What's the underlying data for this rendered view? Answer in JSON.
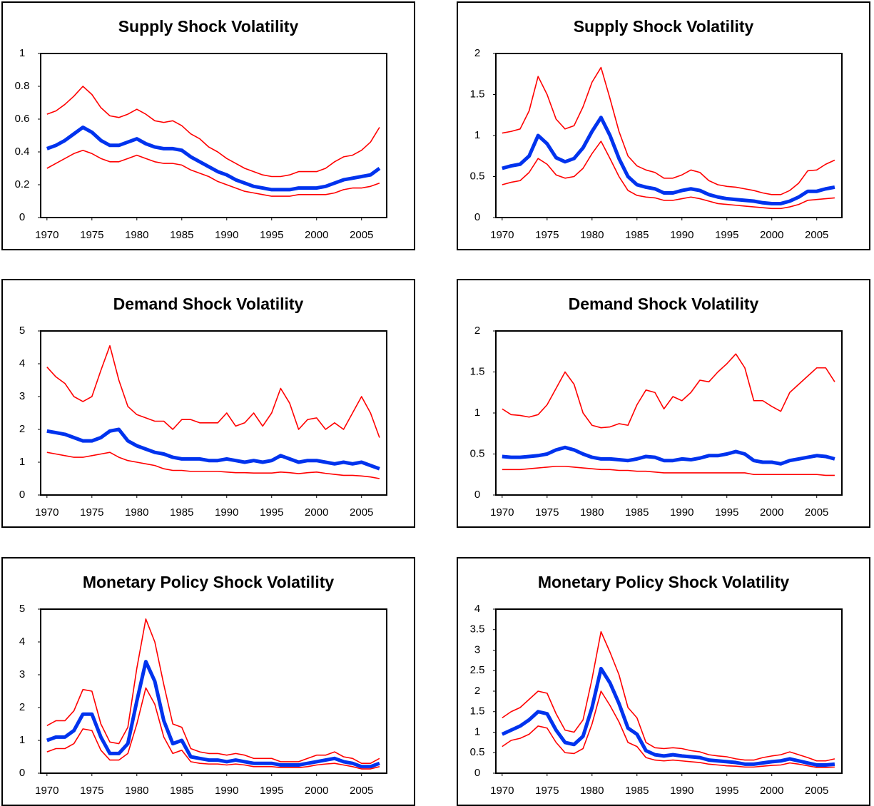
{
  "chart_data": [
    {
      "type": "line",
      "title": "Supply Shock Volatility",
      "x": [
        1970,
        1971,
        1972,
        1973,
        1974,
        1975,
        1976,
        1977,
        1978,
        1979,
        1980,
        1981,
        1982,
        1983,
        1984,
        1985,
        1986,
        1987,
        1988,
        1989,
        1990,
        1991,
        1992,
        1993,
        1994,
        1995,
        1996,
        1997,
        1998,
        1999,
        2000,
        2001,
        2002,
        2003,
        2004,
        2005,
        2006,
        2007
      ],
      "xlim": [
        1969.3,
        2007.8
      ],
      "xticks": [
        1970,
        1975,
        1980,
        1985,
        1990,
        1995,
        2000,
        2005
      ],
      "ylim": [
        0,
        1
      ],
      "yticks": [
        0,
        0.2,
        0.4,
        0.6,
        0.8,
        1
      ],
      "series": [
        {
          "color": "#ff0000",
          "values": [
            0.63,
            0.65,
            0.69,
            0.74,
            0.8,
            0.75,
            0.67,
            0.62,
            0.61,
            0.63,
            0.66,
            0.63,
            0.59,
            0.58,
            0.59,
            0.56,
            0.51,
            0.48,
            0.43,
            0.4,
            0.36,
            0.33,
            0.3,
            0.28,
            0.26,
            0.25,
            0.25,
            0.26,
            0.28,
            0.28,
            0.28,
            0.3,
            0.34,
            0.37,
            0.38,
            0.41,
            0.46,
            0.55
          ]
        },
        {
          "color": "#0033ee",
          "values": [
            0.42,
            0.44,
            0.47,
            0.51,
            0.55,
            0.52,
            0.47,
            0.44,
            0.44,
            0.46,
            0.48,
            0.45,
            0.43,
            0.42,
            0.42,
            0.41,
            0.37,
            0.34,
            0.31,
            0.28,
            0.26,
            0.23,
            0.21,
            0.19,
            0.18,
            0.17,
            0.17,
            0.17,
            0.18,
            0.18,
            0.18,
            0.19,
            0.21,
            0.23,
            0.24,
            0.25,
            0.26,
            0.3
          ]
        },
        {
          "color": "#ff0000",
          "values": [
            0.3,
            0.33,
            0.36,
            0.39,
            0.41,
            0.39,
            0.36,
            0.34,
            0.34,
            0.36,
            0.38,
            0.36,
            0.34,
            0.33,
            0.33,
            0.32,
            0.29,
            0.27,
            0.25,
            0.22,
            0.2,
            0.18,
            0.16,
            0.15,
            0.14,
            0.13,
            0.13,
            0.13,
            0.14,
            0.14,
            0.14,
            0.14,
            0.15,
            0.17,
            0.18,
            0.18,
            0.19,
            0.21
          ]
        }
      ]
    },
    {
      "type": "line",
      "title": "Supply Shock Volatility",
      "x": [
        1970,
        1971,
        1972,
        1973,
        1974,
        1975,
        1976,
        1977,
        1978,
        1979,
        1980,
        1981,
        1982,
        1983,
        1984,
        1985,
        1986,
        1987,
        1988,
        1989,
        1990,
        1991,
        1992,
        1993,
        1994,
        1995,
        1996,
        1997,
        1998,
        1999,
        2000,
        2001,
        2002,
        2003,
        2004,
        2005,
        2006,
        2007
      ],
      "xlim": [
        1969.3,
        2007.8
      ],
      "xticks": [
        1970,
        1975,
        1980,
        1985,
        1990,
        1995,
        2000,
        2005
      ],
      "ylim": [
        0,
        2
      ],
      "yticks": [
        0,
        0.5,
        1,
        1.5,
        2
      ],
      "series": [
        {
          "color": "#ff0000",
          "values": [
            1.03,
            1.05,
            1.08,
            1.3,
            1.72,
            1.5,
            1.2,
            1.08,
            1.12,
            1.35,
            1.65,
            1.83,
            1.45,
            1.05,
            0.75,
            0.63,
            0.58,
            0.55,
            0.48,
            0.48,
            0.52,
            0.58,
            0.55,
            0.45,
            0.4,
            0.38,
            0.37,
            0.35,
            0.33,
            0.3,
            0.28,
            0.28,
            0.33,
            0.42,
            0.57,
            0.58,
            0.65,
            0.7
          ]
        },
        {
          "color": "#0033ee",
          "values": [
            0.6,
            0.63,
            0.65,
            0.75,
            1.0,
            0.9,
            0.73,
            0.68,
            0.72,
            0.85,
            1.05,
            1.22,
            1.0,
            0.72,
            0.5,
            0.4,
            0.37,
            0.35,
            0.3,
            0.3,
            0.33,
            0.35,
            0.33,
            0.28,
            0.25,
            0.23,
            0.22,
            0.21,
            0.2,
            0.18,
            0.17,
            0.17,
            0.2,
            0.25,
            0.32,
            0.32,
            0.35,
            0.37
          ]
        },
        {
          "color": "#ff0000",
          "values": [
            0.4,
            0.43,
            0.45,
            0.55,
            0.72,
            0.65,
            0.52,
            0.48,
            0.5,
            0.6,
            0.78,
            0.93,
            0.72,
            0.5,
            0.33,
            0.27,
            0.25,
            0.24,
            0.21,
            0.21,
            0.23,
            0.25,
            0.23,
            0.2,
            0.17,
            0.16,
            0.15,
            0.14,
            0.13,
            0.12,
            0.11,
            0.11,
            0.13,
            0.16,
            0.21,
            0.22,
            0.23,
            0.24
          ]
        }
      ]
    },
    {
      "type": "line",
      "title": "Demand Shock Volatility",
      "x": [
        1970,
        1971,
        1972,
        1973,
        1974,
        1975,
        1976,
        1977,
        1978,
        1979,
        1980,
        1981,
        1982,
        1983,
        1984,
        1985,
        1986,
        1987,
        1988,
        1989,
        1990,
        1991,
        1992,
        1993,
        1994,
        1995,
        1996,
        1997,
        1998,
        1999,
        2000,
        2001,
        2002,
        2003,
        2004,
        2005,
        2006,
        2007
      ],
      "xlim": [
        1969.3,
        2007.8
      ],
      "xticks": [
        1970,
        1975,
        1980,
        1985,
        1990,
        1995,
        2000,
        2005
      ],
      "ylim": [
        0,
        5
      ],
      "yticks": [
        0,
        1,
        2,
        3,
        4,
        5
      ],
      "series": [
        {
          "color": "#ff0000",
          "values": [
            3.9,
            3.6,
            3.4,
            3.0,
            2.85,
            3.0,
            3.8,
            4.55,
            3.5,
            2.7,
            2.45,
            2.35,
            2.25,
            2.25,
            2.0,
            2.3,
            2.3,
            2.2,
            2.2,
            2.2,
            2.5,
            2.1,
            2.2,
            2.5,
            2.1,
            2.5,
            3.25,
            2.8,
            2.0,
            2.3,
            2.35,
            2.0,
            2.2,
            2.0,
            2.5,
            3.0,
            2.5,
            1.75
          ]
        },
        {
          "color": "#0033ee",
          "values": [
            1.95,
            1.9,
            1.85,
            1.75,
            1.65,
            1.65,
            1.75,
            1.95,
            2.0,
            1.65,
            1.5,
            1.4,
            1.3,
            1.25,
            1.15,
            1.1,
            1.1,
            1.1,
            1.05,
            1.05,
            1.1,
            1.05,
            1.0,
            1.05,
            1.0,
            1.05,
            1.2,
            1.1,
            1.0,
            1.05,
            1.05,
            1.0,
            0.95,
            1.0,
            0.95,
            1.0,
            0.9,
            0.8
          ]
        },
        {
          "color": "#ff0000",
          "values": [
            1.3,
            1.25,
            1.2,
            1.15,
            1.15,
            1.2,
            1.25,
            1.3,
            1.15,
            1.05,
            1.0,
            0.95,
            0.9,
            0.8,
            0.75,
            0.75,
            0.72,
            0.72,
            0.72,
            0.72,
            0.7,
            0.68,
            0.68,
            0.67,
            0.67,
            0.67,
            0.7,
            0.68,
            0.65,
            0.68,
            0.7,
            0.66,
            0.63,
            0.6,
            0.6,
            0.58,
            0.55,
            0.5
          ]
        }
      ]
    },
    {
      "type": "line",
      "title": "Demand Shock Volatility",
      "x": [
        1970,
        1971,
        1972,
        1973,
        1974,
        1975,
        1976,
        1977,
        1978,
        1979,
        1980,
        1981,
        1982,
        1983,
        1984,
        1985,
        1986,
        1987,
        1988,
        1989,
        1990,
        1991,
        1992,
        1993,
        1994,
        1995,
        1996,
        1997,
        1998,
        1999,
        2000,
        2001,
        2002,
        2003,
        2004,
        2005,
        2006,
        2007
      ],
      "xlim": [
        1969.3,
        2007.8
      ],
      "xticks": [
        1970,
        1975,
        1980,
        1985,
        1990,
        1995,
        2000,
        2005
      ],
      "ylim": [
        0,
        2
      ],
      "yticks": [
        0,
        0.5,
        1,
        1.5,
        2
      ],
      "series": [
        {
          "color": "#ff0000",
          "values": [
            1.05,
            0.98,
            0.97,
            0.95,
            0.98,
            1.1,
            1.3,
            1.5,
            1.35,
            1.0,
            0.85,
            0.82,
            0.83,
            0.87,
            0.85,
            1.1,
            1.28,
            1.25,
            1.05,
            1.2,
            1.15,
            1.25,
            1.4,
            1.38,
            1.5,
            1.6,
            1.72,
            1.55,
            1.15,
            1.15,
            1.08,
            1.02,
            1.25,
            1.35,
            1.45,
            1.55,
            1.55,
            1.38
          ]
        },
        {
          "color": "#0033ee",
          "values": [
            0.47,
            0.46,
            0.46,
            0.47,
            0.48,
            0.5,
            0.55,
            0.58,
            0.55,
            0.5,
            0.46,
            0.44,
            0.44,
            0.43,
            0.42,
            0.44,
            0.47,
            0.46,
            0.42,
            0.42,
            0.44,
            0.43,
            0.45,
            0.48,
            0.48,
            0.5,
            0.53,
            0.5,
            0.42,
            0.4,
            0.4,
            0.38,
            0.42,
            0.44,
            0.46,
            0.48,
            0.47,
            0.44
          ]
        },
        {
          "color": "#ff0000",
          "values": [
            0.31,
            0.31,
            0.31,
            0.32,
            0.33,
            0.34,
            0.35,
            0.35,
            0.34,
            0.33,
            0.32,
            0.31,
            0.31,
            0.3,
            0.3,
            0.29,
            0.29,
            0.28,
            0.27,
            0.27,
            0.27,
            0.27,
            0.27,
            0.27,
            0.27,
            0.27,
            0.27,
            0.27,
            0.25,
            0.25,
            0.25,
            0.25,
            0.25,
            0.25,
            0.25,
            0.25,
            0.24,
            0.24
          ]
        }
      ]
    },
    {
      "type": "line",
      "title": "Monetary Policy Shock Volatility",
      "x": [
        1970,
        1971,
        1972,
        1973,
        1974,
        1975,
        1976,
        1977,
        1978,
        1979,
        1980,
        1981,
        1982,
        1983,
        1984,
        1985,
        1986,
        1987,
        1988,
        1989,
        1990,
        1991,
        1992,
        1993,
        1994,
        1995,
        1996,
        1997,
        1998,
        1999,
        2000,
        2001,
        2002,
        2003,
        2004,
        2005,
        2006,
        2007
      ],
      "xlim": [
        1969.3,
        2007.8
      ],
      "xticks": [
        1970,
        1975,
        1980,
        1985,
        1990,
        1995,
        2000,
        2005
      ],
      "ylim": [
        0,
        5
      ],
      "yticks": [
        0,
        1,
        2,
        3,
        4,
        5
      ],
      "series": [
        {
          "color": "#ff0000",
          "values": [
            1.45,
            1.6,
            1.6,
            1.9,
            2.55,
            2.5,
            1.5,
            0.95,
            0.9,
            1.4,
            3.2,
            4.7,
            4.0,
            2.7,
            1.5,
            1.4,
            0.75,
            0.65,
            0.6,
            0.6,
            0.55,
            0.6,
            0.55,
            0.45,
            0.45,
            0.45,
            0.35,
            0.35,
            0.35,
            0.45,
            0.55,
            0.55,
            0.65,
            0.5,
            0.45,
            0.3,
            0.3,
            0.45
          ]
        },
        {
          "color": "#0033ee",
          "values": [
            1.0,
            1.1,
            1.1,
            1.3,
            1.8,
            1.8,
            1.1,
            0.6,
            0.6,
            0.9,
            2.2,
            3.4,
            2.8,
            1.6,
            0.9,
            1.0,
            0.5,
            0.45,
            0.4,
            0.4,
            0.35,
            0.4,
            0.35,
            0.3,
            0.3,
            0.3,
            0.25,
            0.25,
            0.25,
            0.3,
            0.35,
            0.4,
            0.45,
            0.35,
            0.3,
            0.2,
            0.2,
            0.3
          ]
        },
        {
          "color": "#ff0000",
          "values": [
            0.65,
            0.75,
            0.75,
            0.9,
            1.35,
            1.3,
            0.7,
            0.4,
            0.4,
            0.6,
            1.5,
            2.6,
            2.1,
            1.1,
            0.6,
            0.7,
            0.35,
            0.3,
            0.28,
            0.28,
            0.25,
            0.28,
            0.25,
            0.2,
            0.2,
            0.2,
            0.17,
            0.17,
            0.17,
            0.2,
            0.25,
            0.28,
            0.3,
            0.25,
            0.2,
            0.13,
            0.13,
            0.2
          ]
        }
      ]
    },
    {
      "type": "line",
      "title": "Monetary Policy Shock Volatility",
      "x": [
        1970,
        1971,
        1972,
        1973,
        1974,
        1975,
        1976,
        1977,
        1978,
        1979,
        1980,
        1981,
        1982,
        1983,
        1984,
        1985,
        1986,
        1987,
        1988,
        1989,
        1990,
        1991,
        1992,
        1993,
        1994,
        1995,
        1996,
        1997,
        1998,
        1999,
        2000,
        2001,
        2002,
        2003,
        2004,
        2005,
        2006,
        2007
      ],
      "xlim": [
        1969.3,
        2007.8
      ],
      "xticks": [
        1970,
        1975,
        1980,
        1985,
        1990,
        1995,
        2000,
        2005
      ],
      "ylim": [
        0,
        4
      ],
      "yticks": [
        0,
        0.5,
        1,
        1.5,
        2,
        2.5,
        3,
        3.5,
        4
      ],
      "series": [
        {
          "color": "#ff0000",
          "values": [
            1.35,
            1.5,
            1.6,
            1.8,
            2.0,
            1.95,
            1.45,
            1.05,
            1.0,
            1.3,
            2.3,
            3.45,
            2.95,
            2.4,
            1.6,
            1.35,
            0.75,
            0.62,
            0.6,
            0.62,
            0.6,
            0.55,
            0.52,
            0.45,
            0.42,
            0.4,
            0.35,
            0.32,
            0.32,
            0.38,
            0.42,
            0.45,
            0.52,
            0.45,
            0.38,
            0.3,
            0.3,
            0.35
          ]
        },
        {
          "color": "#0033ee",
          "values": [
            0.95,
            1.05,
            1.15,
            1.3,
            1.5,
            1.45,
            1.05,
            0.75,
            0.7,
            0.9,
            1.6,
            2.55,
            2.2,
            1.7,
            1.1,
            0.95,
            0.55,
            0.45,
            0.42,
            0.45,
            0.42,
            0.4,
            0.38,
            0.32,
            0.3,
            0.28,
            0.26,
            0.22,
            0.22,
            0.25,
            0.28,
            0.3,
            0.35,
            0.3,
            0.25,
            0.2,
            0.2,
            0.22
          ]
        },
        {
          "color": "#ff0000",
          "values": [
            0.65,
            0.8,
            0.85,
            0.95,
            1.15,
            1.1,
            0.75,
            0.5,
            0.48,
            0.6,
            1.2,
            2.0,
            1.65,
            1.25,
            0.75,
            0.65,
            0.38,
            0.32,
            0.3,
            0.32,
            0.3,
            0.28,
            0.26,
            0.22,
            0.2,
            0.18,
            0.17,
            0.15,
            0.15,
            0.17,
            0.19,
            0.2,
            0.25,
            0.22,
            0.18,
            0.14,
            0.14,
            0.15
          ]
        }
      ]
    }
  ]
}
